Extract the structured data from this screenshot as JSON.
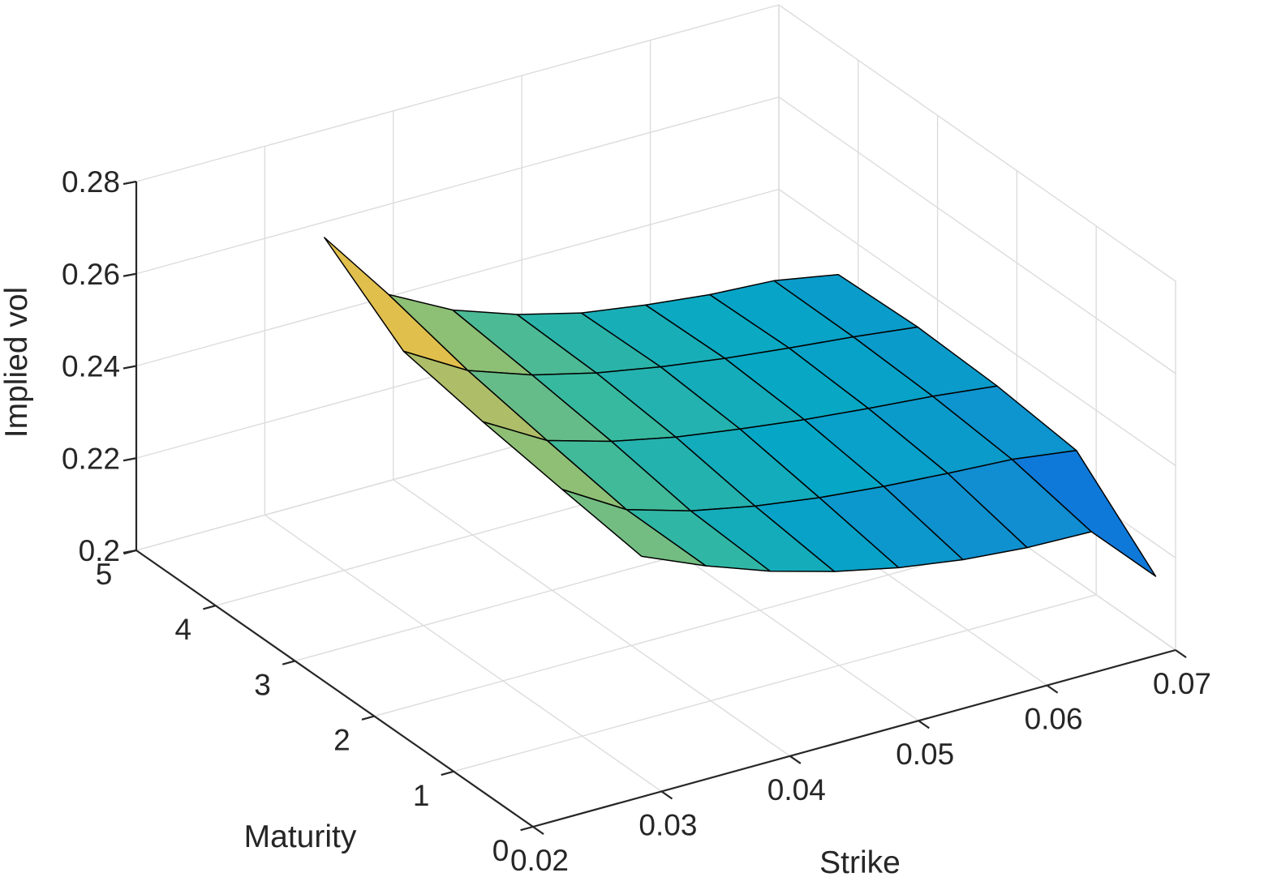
{
  "chart_data": {
    "type": "surface",
    "xlabel": "Strike",
    "ylabel": "Maturity",
    "zlabel": "Implied vol",
    "xlim": [
      0.02,
      0.07
    ],
    "ylim": [
      0,
      5
    ],
    "zlim": [
      0.2,
      0.28
    ],
    "xticks": [
      "0.02",
      "0.03",
      "0.04",
      "0.05",
      "0.06",
      "0.07"
    ],
    "yticks": [
      "0",
      "1",
      "2",
      "3",
      "4",
      "5"
    ],
    "zticks": [
      "0.2",
      "0.22",
      "0.24",
      "0.26",
      "0.28"
    ],
    "grid": true,
    "colormap": "parula",
    "colormap_colors": [
      "#352a87",
      "#0363e1",
      "#1485d4",
      "#06a7c6",
      "#38b99e",
      "#92bf73",
      "#d9ba56",
      "#fcce2e",
      "#f9fb0e"
    ],
    "edge_color": "#000000",
    "strike": [
      0.03,
      0.035,
      0.04,
      0.045,
      0.05,
      0.055,
      0.06,
      0.065,
      0.07
    ],
    "maturity": [
      0.25,
      1.25,
      2.25,
      3.25,
      4.25
    ],
    "implied_vol": [
      [
        0.248,
        0.2421,
        0.2371,
        0.2332,
        0.2302,
        0.2281,
        0.2269,
        0.2265,
        0.213
      ],
      [
        0.2505,
        0.2423,
        0.2382,
        0.2354,
        0.2334,
        0.232,
        0.231,
        0.2302,
        0.2283
      ],
      [
        0.2532,
        0.2453,
        0.2413,
        0.2384,
        0.2363,
        0.2345,
        0.2331,
        0.2319,
        0.2303
      ],
      [
        0.2565,
        0.2485,
        0.2437,
        0.2403,
        0.2378,
        0.2358,
        0.2342,
        0.2328,
        0.2311
      ],
      [
        0.2692,
        0.253,
        0.2458,
        0.241,
        0.2375,
        0.2354,
        0.2338,
        0.233,
        0.2305
      ]
    ]
  }
}
